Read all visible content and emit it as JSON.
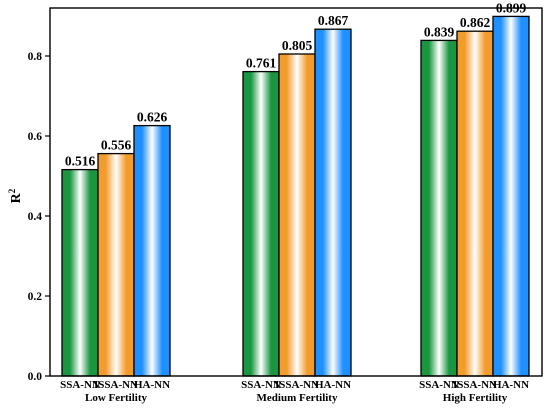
{
  "chart_data": {
    "type": "bar",
    "ylabel": "R",
    "ylabel_superscript": "2",
    "ylim": [
      0.0,
      0.92
    ],
    "yticks": [
      "0.0",
      "0.2",
      "0.4",
      "0.6",
      "0.8"
    ],
    "grid": false,
    "legend": "none",
    "models": [
      "SSA-NN",
      "ISSA-NN",
      "HA-NN"
    ],
    "groups": [
      {
        "name": "Low Fertility",
        "values": [
          0.516,
          0.556,
          0.626
        ],
        "labels": [
          "0.516",
          "0.556",
          "0.626"
        ]
      },
      {
        "name": "Medium Fertility",
        "values": [
          0.761,
          0.805,
          0.867
        ],
        "labels": [
          "0.761",
          "0.805",
          "0.867"
        ]
      },
      {
        "name": "High Fertility",
        "values": [
          0.839,
          0.862,
          0.899
        ],
        "labels": [
          "0.839",
          "0.862",
          "0.899"
        ]
      }
    ],
    "colors": {
      "SSA-NN": "#1a9641",
      "ISSA-NN": "#f39c2e",
      "HA-NN": "#1e90ff"
    }
  }
}
